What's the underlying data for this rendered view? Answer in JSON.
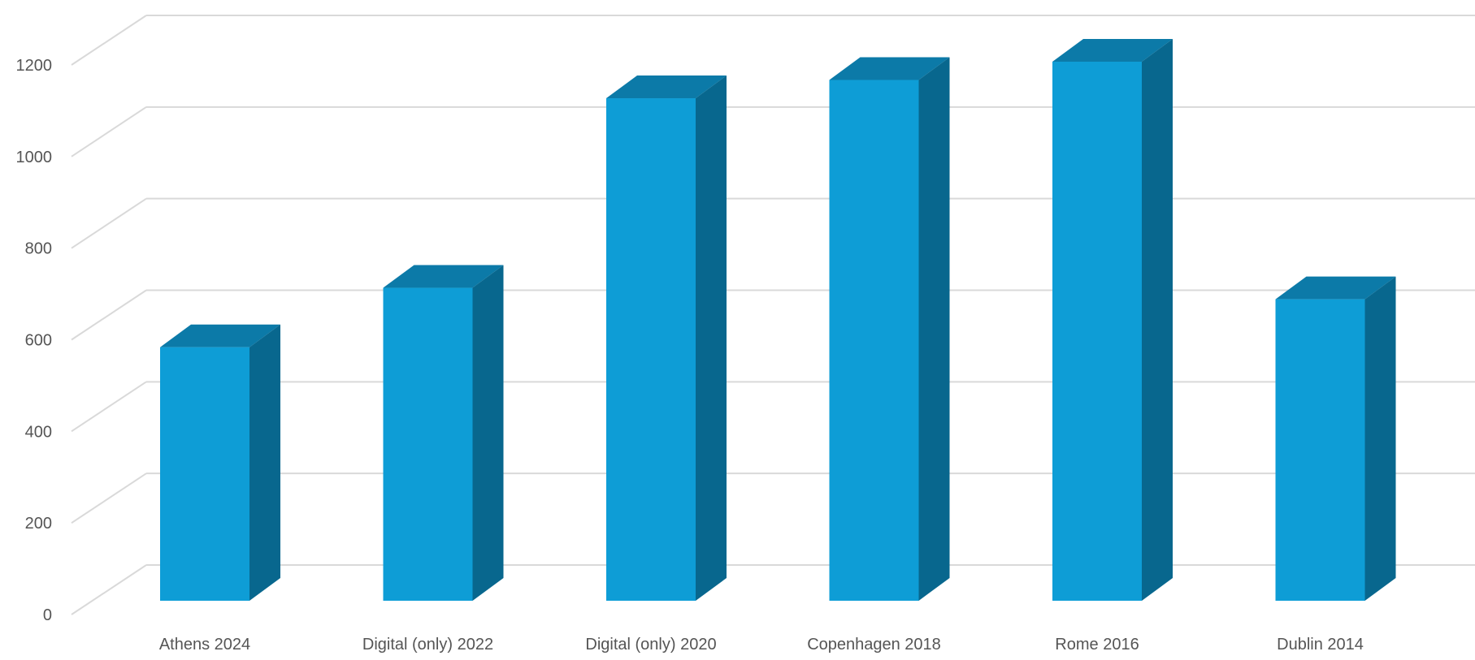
{
  "chart_data": {
    "type": "bar",
    "style": "3d-column",
    "title": "",
    "xlabel": "",
    "ylabel": "",
    "categories": [
      "Athens 2024",
      "Digital (only) 2022",
      "Digital (only) 2020",
      "Copenhagen 2018",
      "Rome 2016",
      "Dublin 2014"
    ],
    "values": [
      555,
      685,
      1100,
      1140,
      1180,
      660
    ],
    "ylim": [
      0,
      1200
    ],
    "yticks": [
      "0",
      "200",
      "400",
      "600",
      "800",
      "1000",
      "1200"
    ],
    "grid": true,
    "legend": "none",
    "colors": {
      "front": "#0E9DD6",
      "top": "#0C7AA8",
      "side": "#08678E",
      "grid": "#D9D9D9",
      "text": "#555555"
    }
  }
}
